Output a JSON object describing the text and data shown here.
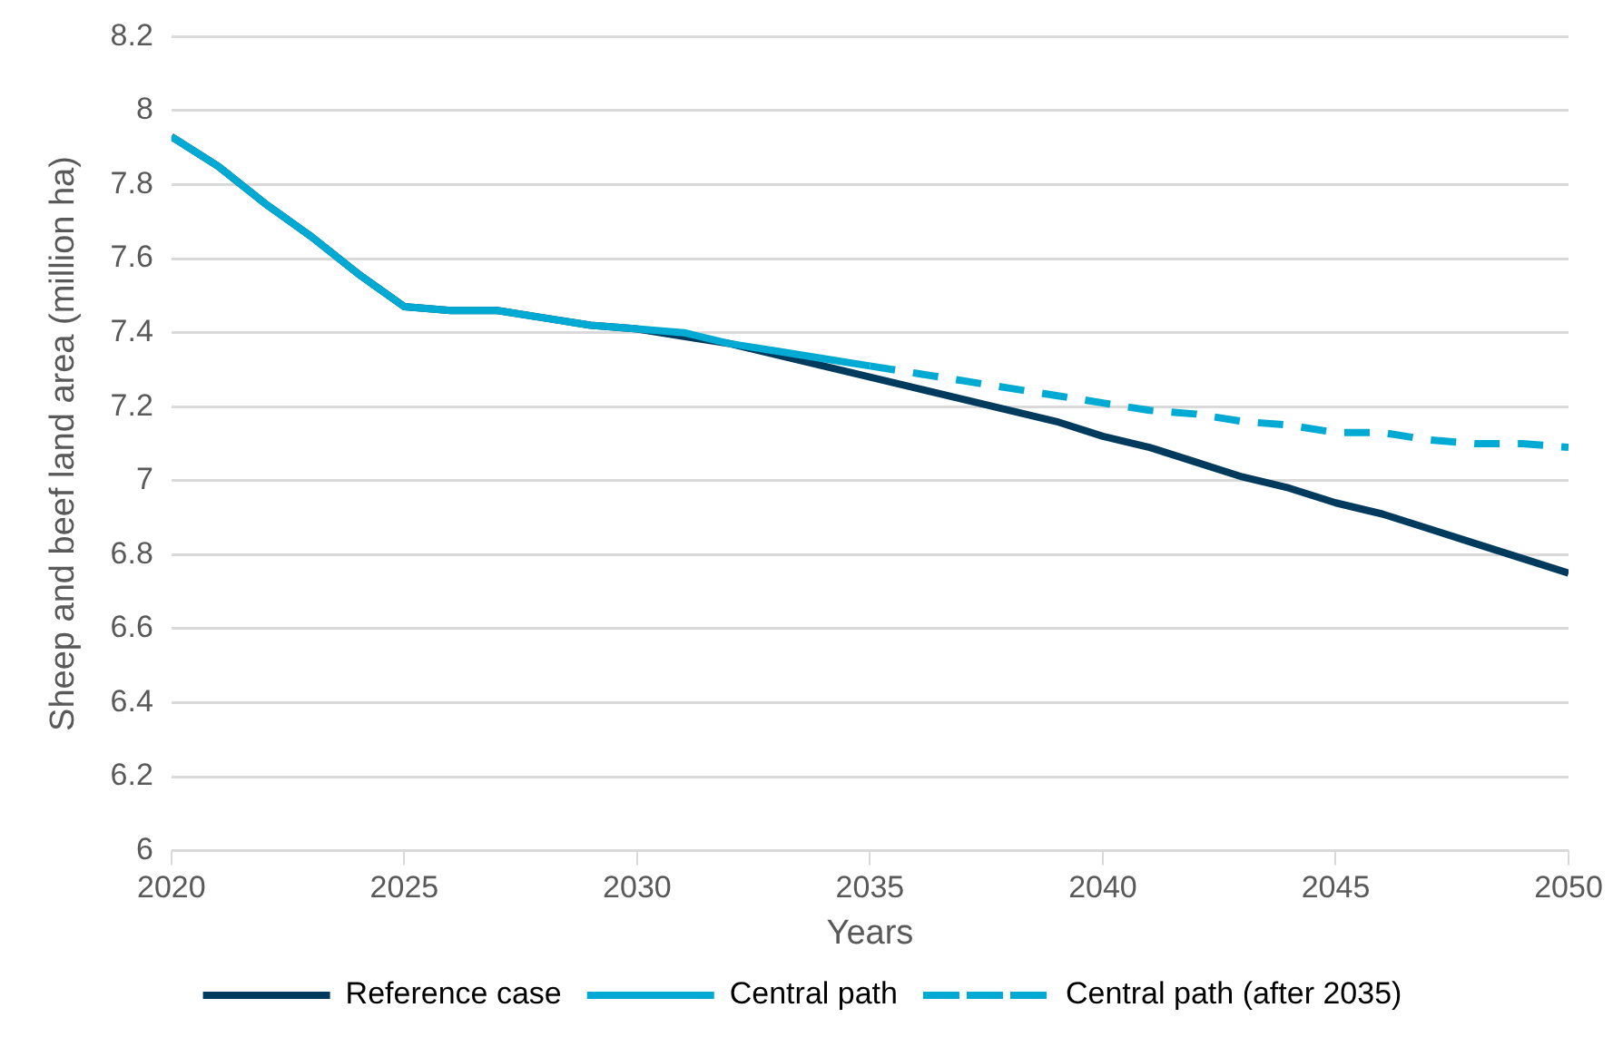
{
  "chart_data": {
    "type": "line",
    "xlabel": "Years",
    "ylabel": "Sheep and beef land area (million ha)",
    "xlim": [
      2020,
      2050
    ],
    "xticks": [
      2020,
      2025,
      2030,
      2035,
      2040,
      2045,
      2050
    ],
    "ylim": [
      6,
      8.2
    ],
    "yticks": [
      6,
      6.2,
      6.4,
      6.6,
      6.8,
      7,
      7.2,
      7.4,
      7.6,
      7.8,
      8,
      8.2
    ],
    "grid": "y",
    "legend": "bottom",
    "marker": "none",
    "series": [
      {
        "name": "Reference case",
        "color": "#003a5d",
        "line_style": "solid",
        "x": [
          2020,
          2021,
          2022,
          2023,
          2024,
          2025,
          2026,
          2027,
          2028,
          2029,
          2030,
          2031,
          2032,
          2033,
          2034,
          2035,
          2036,
          2037,
          2038,
          2039,
          2040,
          2041,
          2042,
          2043,
          2044,
          2045,
          2046,
          2047,
          2048,
          2049,
          2050
        ],
        "values": [
          7.93,
          7.85,
          7.75,
          7.66,
          7.56,
          7.47,
          7.46,
          7.46,
          7.44,
          7.42,
          7.41,
          7.39,
          7.37,
          7.34,
          7.31,
          7.28,
          7.25,
          7.22,
          7.19,
          7.16,
          7.12,
          7.09,
          7.05,
          7.01,
          6.98,
          6.94,
          6.91,
          6.87,
          6.83,
          6.79,
          6.75
        ]
      },
      {
        "name": "Central path",
        "color": "#00aad2",
        "line_style": "solid",
        "x": [
          2020,
          2021,
          2022,
          2023,
          2024,
          2025,
          2026,
          2027,
          2028,
          2029,
          2030,
          2031,
          2032,
          2033,
          2034,
          2035
        ],
        "values": [
          7.93,
          7.85,
          7.75,
          7.66,
          7.56,
          7.47,
          7.46,
          7.46,
          7.44,
          7.42,
          7.41,
          7.4,
          7.37,
          7.35,
          7.33,
          7.31
        ]
      },
      {
        "name": "Central path (after 2035)",
        "color": "#00aad2",
        "line_style": "dashed",
        "x": [
          2035,
          2036,
          2037,
          2038,
          2039,
          2040,
          2041,
          2042,
          2043,
          2044,
          2045,
          2046,
          2047,
          2048,
          2049,
          2050
        ],
        "values": [
          7.31,
          7.29,
          7.27,
          7.25,
          7.23,
          7.21,
          7.19,
          7.18,
          7.16,
          7.15,
          7.13,
          7.13,
          7.11,
          7.1,
          7.1,
          7.09
        ]
      }
    ]
  }
}
